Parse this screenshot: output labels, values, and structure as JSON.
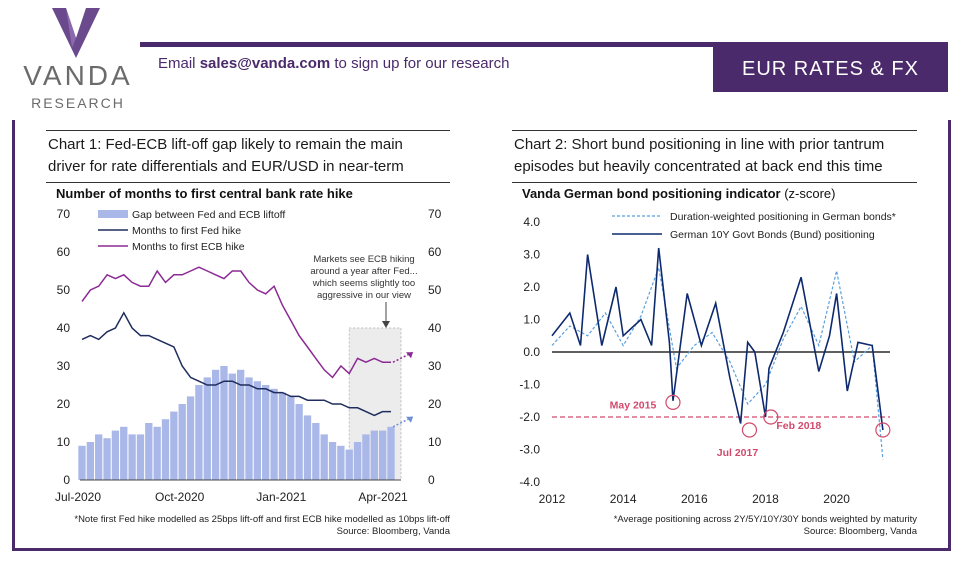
{
  "header": {
    "logo_name": "VANDA",
    "logo_sub": "RESEARCH",
    "email_prefix": "Email",
    "email_address": "sales@vanda.com",
    "email_suffix": "to sign up for our research",
    "banner": "EUR RATES & FX"
  },
  "colors": {
    "brand": "#4b2a6b",
    "fed": "#1f2d5c",
    "ecb": "#8b2a94",
    "gap": "#a9b8e8",
    "bund": "#0e2a6e",
    "duration": "#5aa0e0",
    "marker": "#d04a6c"
  },
  "chart1": {
    "title_line1": "Chart 1: Fed-ECB lift-off gap likely to remain the main",
    "title_line2": "driver for rate differentials and EUR/USD in near-term",
    "subtitle": "Number of months to first central bank rate hike",
    "note_line1": "*Note first Fed hike modelled as 25bps lift-off and first ECB hike modelled as 10bps lift-off",
    "note_line2": "Source: Bloomberg, Vanda",
    "annotation": [
      "Markets see ECB hiking",
      "around a year after Fed...",
      "which seems slightly too",
      "aggressive in our view"
    ]
  },
  "chart2": {
    "title_line1": "Chart 2: Short bund positioning in line with prior tantrum",
    "title_line2": "episodes but heavily concentrated at back end this time",
    "subtitle_bold": "Vanda German bond positioning indicator",
    "subtitle_rest": "(z-score)",
    "note_line1": "*Average positioning across 2Y/5Y/10Y/30Y bonds weighted by maturity",
    "note_line2": "Source: Bloomberg, Vanda",
    "callouts": [
      "May 2015",
      "Jul 2017",
      "Feb 2018"
    ]
  },
  "chart_data": [
    {
      "type": "line",
      "title": "Number of months to first central bank rate hike",
      "x_ticks": [
        "Jul-2020",
        "Oct-2020",
        "Jan-2021",
        "Apr-2021"
      ],
      "x_range": [
        "2020-07-01",
        "2021-04-30"
      ],
      "ylim": [
        0,
        70
      ],
      "y_ticks": [
        0,
        10,
        20,
        30,
        40,
        50,
        60,
        70
      ],
      "legend": "top-left",
      "series": [
        {
          "name": "Gap between Fed and ECB liftoff",
          "render": "area",
          "values": [
            9,
            10,
            12,
            11,
            13,
            14,
            12,
            12,
            15,
            14,
            16,
            18,
            20,
            22,
            25,
            27,
            29,
            30,
            28,
            29,
            27,
            26,
            25,
            24,
            23,
            22,
            20,
            17,
            15,
            12,
            10,
            9,
            8,
            10,
            12,
            13,
            13,
            14
          ]
        },
        {
          "name": "Months to first Fed hike",
          "render": "line",
          "values": [
            37,
            38,
            37,
            39,
            40,
            44,
            40,
            38,
            38,
            37,
            36,
            35,
            30,
            27,
            26,
            25,
            25,
            26,
            26,
            25,
            25,
            24,
            24,
            23,
            23,
            22,
            22,
            21,
            21,
            21,
            20,
            20,
            19,
            19,
            18,
            17,
            18,
            18
          ]
        },
        {
          "name": "Months to first ECB hike",
          "render": "line",
          "values": [
            47,
            50,
            51,
            54,
            53,
            54,
            52,
            51,
            51,
            55,
            52,
            54,
            54,
            55,
            56,
            55,
            54,
            53,
            55,
            55,
            52,
            50,
            49,
            51,
            46,
            42,
            38,
            35,
            32,
            29,
            27,
            30,
            28,
            32,
            31,
            32,
            31,
            31
          ]
        }
      ],
      "annotation": "Markets see ECB hiking around a year after Fed... which seems slightly too aggressive in our view"
    },
    {
      "type": "line",
      "title": "Vanda German bond positioning indicator (z-score)",
      "x_ticks": [
        "2012",
        "2014",
        "2016",
        "2018",
        "2020"
      ],
      "x_range": [
        2012,
        2021.5
      ],
      "ylim": [
        -4.0,
        4.0
      ],
      "y_ticks": [
        -4.0,
        -3.0,
        -2.0,
        -1.0,
        0.0,
        1.0,
        2.0,
        3.0,
        4.0
      ],
      "reference_line": -2.0,
      "legend": "top",
      "series": [
        {
          "name": "Duration-weighted positioning in German bonds*",
          "style": "dashed",
          "x": [
            2012.0,
            2012.5,
            2013.0,
            2013.5,
            2014.0,
            2014.5,
            2015.0,
            2015.5,
            2016.0,
            2016.5,
            2017.0,
            2017.5,
            2018.0,
            2018.5,
            2019.0,
            2019.5,
            2020.0,
            2020.5,
            2021.0,
            2021.3
          ],
          "values": [
            0.2,
            0.8,
            0.5,
            1.2,
            0.2,
            1.1,
            2.6,
            -0.5,
            0.2,
            0.6,
            -0.3,
            -1.6,
            -1.0,
            0.4,
            1.4,
            0.2,
            2.5,
            -0.3,
            0.2,
            -3.3
          ]
        },
        {
          "name": "German 10Y Govt Bonds (Bund) positioning",
          "style": "solid",
          "x": [
            2012.0,
            2012.5,
            2012.8,
            2013.0,
            2013.4,
            2013.8,
            2014.0,
            2014.5,
            2014.8,
            2015.0,
            2015.3,
            2015.4,
            2015.8,
            2016.2,
            2016.6,
            2017.0,
            2017.3,
            2017.5,
            2017.7,
            2018.0,
            2018.1,
            2018.5,
            2019.0,
            2019.5,
            2019.8,
            2020.0,
            2020.3,
            2020.6,
            2021.0,
            2021.3
          ],
          "values": [
            0.5,
            1.2,
            0.2,
            3.0,
            0.2,
            2.0,
            0.5,
            1.0,
            0.2,
            3.2,
            0.3,
            -1.5,
            1.8,
            0.2,
            1.5,
            -0.8,
            -2.2,
            0.3,
            0.0,
            -2.0,
            -0.5,
            0.6,
            2.3,
            -0.6,
            0.5,
            1.8,
            -1.2,
            0.3,
            0.2,
            -2.4
          ]
        }
      ],
      "callouts": [
        {
          "label": "May 2015",
          "x": 2015.4,
          "y": -1.55
        },
        {
          "label": "Jul 2017",
          "x": 2017.55,
          "y": -2.4
        },
        {
          "label": "Feb 2018",
          "x": 2018.15,
          "y": -2.0
        }
      ]
    }
  ]
}
